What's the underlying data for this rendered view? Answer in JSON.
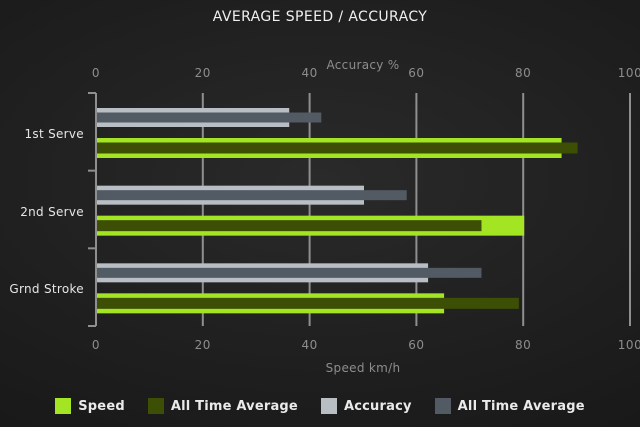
{
  "title": "AVERAGE SPEED / ACCURACY",
  "chart_data": {
    "type": "bar",
    "orientation": "horizontal",
    "title": "AVERAGE SPEED / ACCURACY",
    "categories": [
      "1st Serve",
      "2nd Serve",
      "Grnd Stroke"
    ],
    "series": [
      {
        "name": "Speed",
        "axis": "bottom",
        "color": "#a3e522",
        "style": "thick",
        "values": [
          87,
          80,
          65
        ]
      },
      {
        "name": "All Time Average",
        "axis": "bottom",
        "color": "#3c4f05",
        "style": "thin-overlay",
        "values": [
          90,
          72,
          79
        ]
      },
      {
        "name": "Accuracy",
        "axis": "top",
        "color": "#b9bec4",
        "style": "thick",
        "values": [
          36,
          50,
          62
        ]
      },
      {
        "name": "All Time Average",
        "axis": "top",
        "color": "#525a63",
        "style": "thin-overlay",
        "values": [
          42,
          58,
          72
        ]
      }
    ],
    "top_axis": {
      "label": "Accuracy %",
      "ticks": [
        0,
        20,
        40,
        60,
        80,
        100
      ],
      "range": [
        0,
        100
      ]
    },
    "bottom_axis": {
      "label": "Speed km/h",
      "ticks": [
        0,
        20,
        40,
        60,
        80,
        100
      ],
      "range": [
        0,
        100
      ]
    },
    "legend": {
      "position": "bottom",
      "items": [
        {
          "label": "Speed",
          "color": "#a3e522"
        },
        {
          "label": "All Time Average",
          "color": "#3c4f05"
        },
        {
          "label": "Accuracy",
          "color": "#b9bec4"
        },
        {
          "label": "All Time Average",
          "color": "#525a63"
        }
      ]
    },
    "grid": {
      "vertical": true,
      "color": "#8f8f8f"
    }
  },
  "colors": {
    "background": "#1e1e1e",
    "title_text": "#f0f0f0",
    "axis_text": "#8d8d8d",
    "category_text": "#e6e6e6",
    "gridline": "#8f8f8f",
    "speed": "#a3e522",
    "speed_all_time_average": "#3c4f05",
    "accuracy": "#b9bec4",
    "accuracy_all_time_average": "#525a63"
  }
}
